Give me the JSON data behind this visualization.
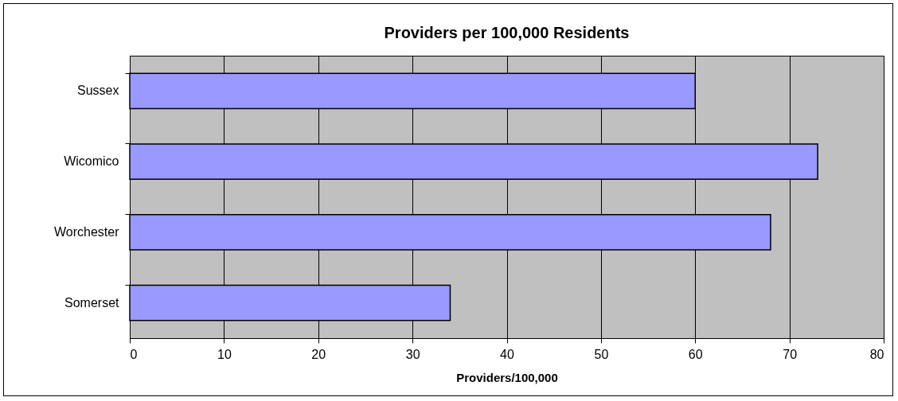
{
  "chart_data": {
    "type": "bar",
    "orientation": "horizontal",
    "title": "Providers per 100,000 Residents",
    "xlabel": "Providers/100,000",
    "categories": [
      "Sussex",
      "Wicomico",
      "Worchester",
      "Somerset"
    ],
    "values": [
      60,
      73,
      68,
      34
    ],
    "color": "#9999ff",
    "xlim": [
      0,
      80
    ],
    "xticks": [
      0,
      10,
      20,
      30,
      40,
      50,
      60,
      70,
      80
    ],
    "grid": "x"
  }
}
